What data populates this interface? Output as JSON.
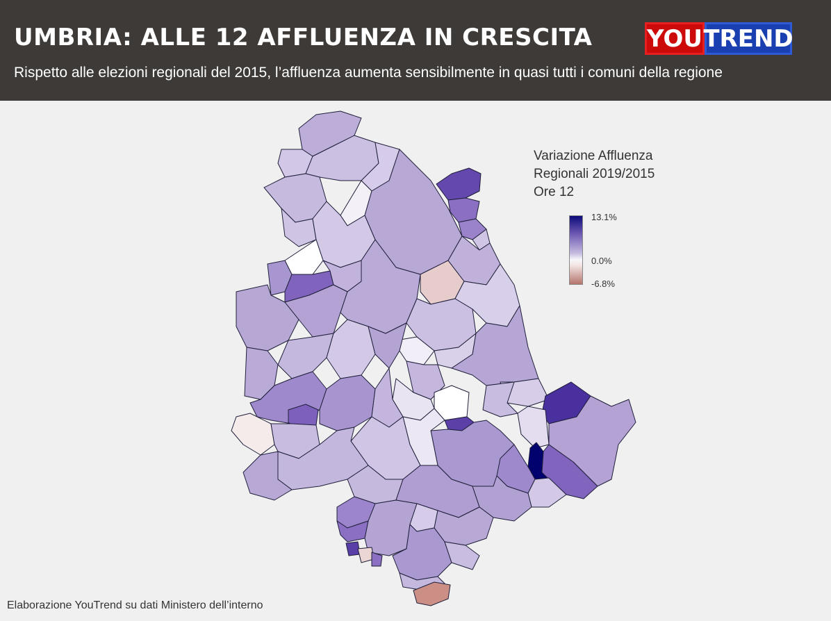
{
  "header": {
    "title": "UMBRIA: ALLE 12 AFFLUENZA IN CRESCITA",
    "subtitle": "Rispetto alle elezioni regionali del 2015, l’affluenza aumenta sensibilmente in quasi tutti i comuni della regione"
  },
  "logo": {
    "part1": "YOU",
    "part2": "TREND"
  },
  "legend": {
    "title": "Variazione Affluenza\nRegionali 2019/2015\nOre 12",
    "max_label": "13.1%",
    "mid_label": "0.0%",
    "min_label": "-6.8%",
    "scale_max": 13.1,
    "scale_min": -6.8,
    "colors": {
      "max": "#0b0b7a",
      "mid": "#f7f7fb",
      "min": "#b5756d"
    }
  },
  "map": {
    "region": "Umbria",
    "metric": "Variazione Affluenza Regionali 2019/2015 Ore 12"
  },
  "source": "Elaborazione YouTrend su dati Ministero dell’interno"
}
